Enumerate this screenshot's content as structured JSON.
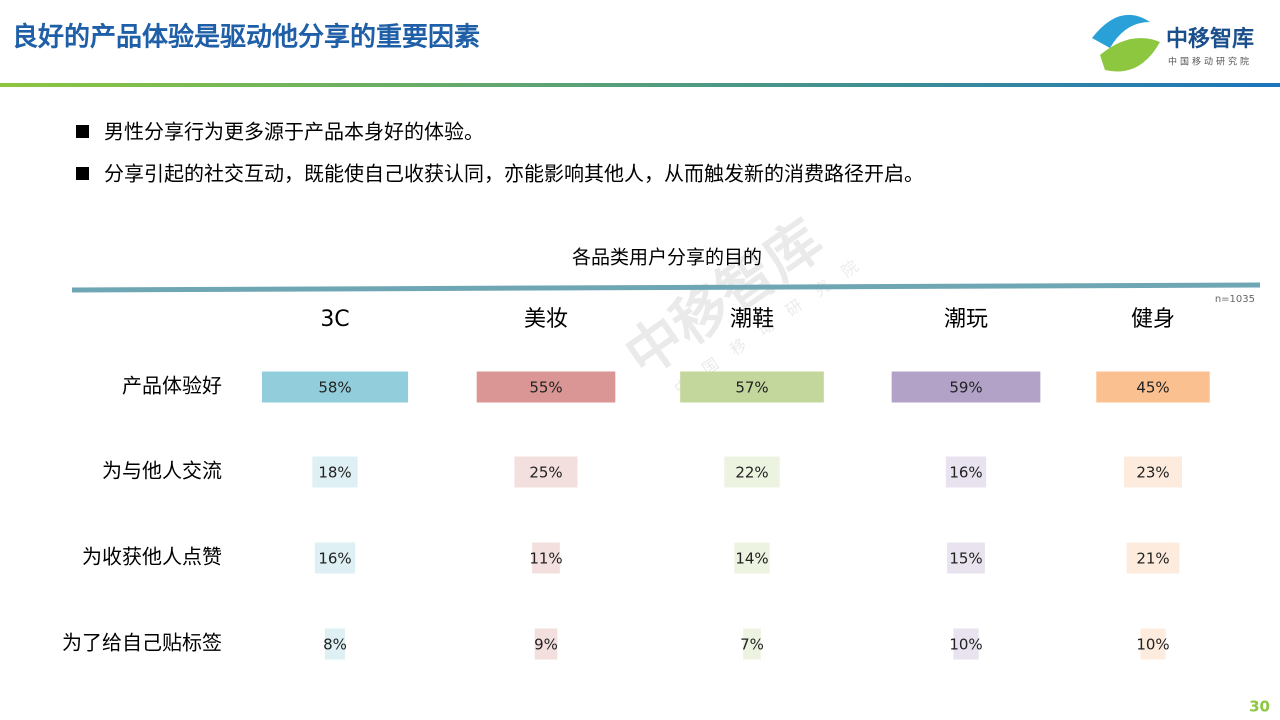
{
  "header": {
    "title": "良好的产品体验是驱动他分享的重要因素",
    "logo": "中移智库",
    "logo_sub": "中国移动研究院"
  },
  "bullets": [
    "男性分享行为更多源于产品本身好的体验。",
    "分享引起的社交互动，既能使自己收获认同，亦能影响其他人，从而触发新的消费路径开启。"
  ],
  "page_number": "30",
  "chart_data": {
    "type": "bar",
    "title": "各品类用户分享的目的",
    "note": "n=1035",
    "categories": [
      "3C",
      "美妆",
      "潮鞋",
      "潮玩",
      "健身"
    ],
    "colors": [
      "#92cddc",
      "#d99694",
      "#c3d69b",
      "#b3a2c7",
      "#fac090"
    ],
    "series": [
      {
        "name": "产品体验好",
        "opacity": 1,
        "values": [
          58,
          55,
          57,
          59,
          45
        ],
        "value_labels": [
          "58%",
          "55%",
          "57%",
          "59%",
          "45%"
        ]
      },
      {
        "name": "为与他人交流",
        "opacity": 0.3,
        "values": [
          18,
          25,
          22,
          16,
          23
        ],
        "value_labels": [
          "18%",
          "25%",
          "22%",
          "16%",
          "23%"
        ]
      },
      {
        "name": "为收获他人点赞",
        "opacity": 0.3,
        "values": [
          16,
          11,
          14,
          15,
          21
        ],
        "value_labels": [
          "16%",
          "11%",
          "14%",
          "15%",
          "21%"
        ]
      },
      {
        "name": "为了给自己贴标签",
        "opacity": 0.3,
        "values": [
          8,
          9,
          7,
          10,
          10
        ],
        "value_labels": [
          "8%",
          "9%",
          "7%",
          "10%",
          "10%"
        ]
      }
    ]
  }
}
